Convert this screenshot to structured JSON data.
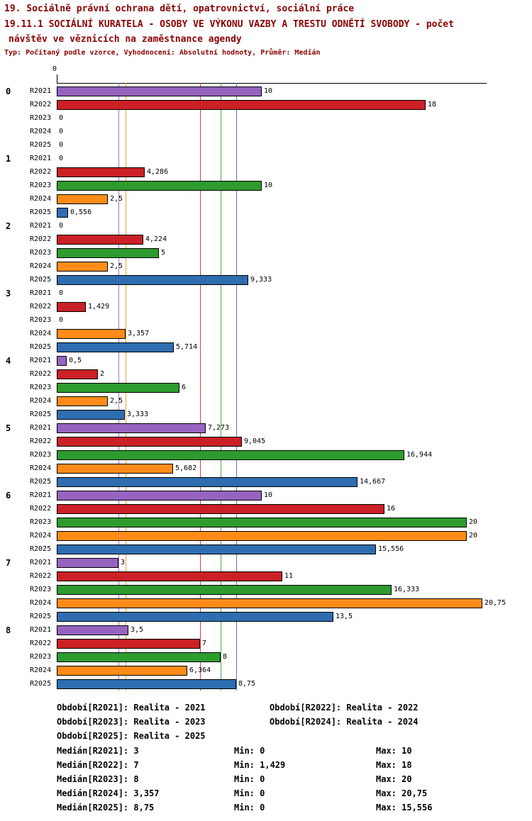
{
  "title": {
    "line1": "19. Sociálně právní ochrana dětí, opatrovnictví, sociální práce",
    "line2": "19.11.1 SOCIÁLNÍ KURATELA - OSOBY VE VÝKONU VAZBY A TRESTU ODNĚTÍ SVOBODY - počet",
    "line3": "návštěv ve věznicích na zaměstnance agendy",
    "subtitle": "Typ: Počítaný podle vzorce, Vyhodnocení: Absolutní hodnoty, Průměr: Medián"
  },
  "chart_data": {
    "type": "bar",
    "orientation": "horizontal",
    "title": "19.11.1 SOCIÁLNÍ KURATELA - OSOBY VE VÝKONU VAZBY A TRESTU ODNĚTÍ SVOBODY - počet návštěv ve věznicích na zaměstnance agendy",
    "xlabel": "",
    "ylabel": "",
    "axis_tick_label": "0",
    "xlim": [
      0,
      20.97
    ],
    "grid": "median-lines-only",
    "legend_position": "bottom",
    "decimal_separator": ",",
    "categories": [
      "0",
      "1",
      "2",
      "3",
      "4",
      "5",
      "6",
      "7",
      "8"
    ],
    "series": [
      {
        "name": "R2021",
        "color": "#9663C0",
        "median": 3,
        "values": [
          10,
          0,
          0,
          0,
          0.5,
          7.273,
          10,
          3,
          3.5
        ]
      },
      {
        "name": "R2022",
        "color": "#CB2026",
        "median": 7,
        "values": [
          18,
          4.286,
          4.224,
          1.429,
          2,
          9.045,
          16,
          11,
          7
        ]
      },
      {
        "name": "R2023",
        "color": "#2E9B2E",
        "median": 8,
        "values": [
          0,
          10,
          5,
          0,
          6,
          16.944,
          20,
          16.333,
          8
        ]
      },
      {
        "name": "R2024",
        "color": "#FF8C19",
        "median": 3.357,
        "values": [
          0,
          2.5,
          2.5,
          3.357,
          2.5,
          5.682,
          20,
          20.75,
          6.364
        ]
      },
      {
        "name": "R2025",
        "color": "#2E6DB0",
        "median": 8.75,
        "values": [
          0,
          0.556,
          9.333,
          5.714,
          3.333,
          14.667,
          15.556,
          13.5,
          8.75
        ]
      }
    ]
  },
  "legend": {
    "rows": [
      [
        "Období[R2021]: Realita - 2021",
        "Období[R2022]: Realita - 2022"
      ],
      [
        "Období[R2023]: Realita - 2023",
        "Období[R2024]: Realita - 2024"
      ],
      [
        "Období[R2025]: Realita - 2025"
      ]
    ]
  },
  "stats": [
    {
      "median": "Medián[R2021]: 3",
      "min": "Min: 0",
      "max": "Max: 10"
    },
    {
      "median": "Medián[R2022]: 7",
      "min": "Min: 1,429",
      "max": "Max: 18"
    },
    {
      "median": "Medián[R2023]: 8",
      "min": "Min: 0",
      "max": "Max: 20"
    },
    {
      "median": "Medián[R2024]: 3,357",
      "min": "Min: 0",
      "max": "Max: 20,75"
    },
    {
      "median": "Medián[R2025]: 8,75",
      "min": "Min: 0",
      "max": "Max: 15,556"
    }
  ]
}
